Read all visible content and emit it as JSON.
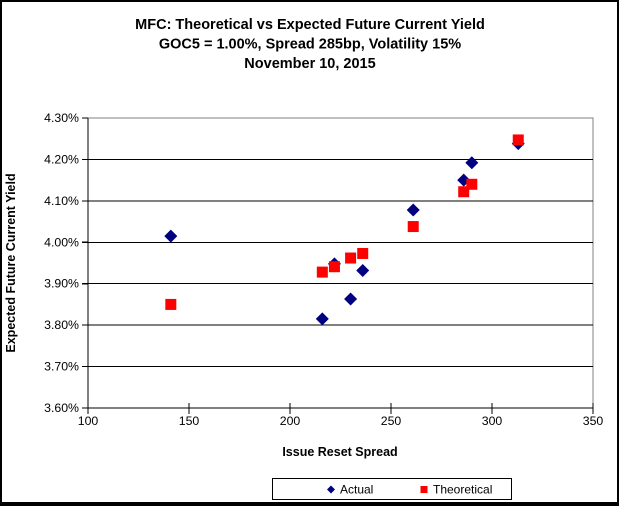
{
  "chart_data": {
    "type": "scatter",
    "title_line1": "MFC: Theoretical vs Expected Future Current Yield",
    "title_line2": "GOC5 = 1.00%, Spread 285bp, Volatility 15%",
    "title_line3": "November 10, 2015",
    "xlabel": "Issue Reset Spread",
    "ylabel": "Expected Future Current Yield",
    "xlim": [
      100,
      350
    ],
    "ylim": [
      3.6,
      4.3
    ],
    "x_ticks": [
      100,
      150,
      200,
      250,
      300,
      350
    ],
    "x_tick_labels": [
      "100",
      "150",
      "200",
      "250",
      "300",
      "350"
    ],
    "y_ticks": [
      3.6,
      3.7,
      3.8,
      3.9,
      4.0,
      4.1,
      4.2,
      4.3
    ],
    "y_tick_labels": [
      "3.60%",
      "3.70%",
      "3.80%",
      "3.90%",
      "4.00%",
      "4.10%",
      "4.20%",
      "4.30%"
    ],
    "y_unit": "percent",
    "grid": "horizontal-major",
    "legend_position": "bottom",
    "colors": {
      "actual": "#000080",
      "theoretical": "#FF0000",
      "gridline": "#000000",
      "plot_border": "#808080",
      "axis": "#000000",
      "background": "#FFFFFF"
    },
    "series": [
      {
        "name": "Actual",
        "marker": "diamond",
        "color": "#000080",
        "points": [
          [
            141,
            4.015
          ],
          [
            216,
            3.815
          ],
          [
            222,
            3.948
          ],
          [
            230,
            3.863
          ],
          [
            236,
            3.932
          ],
          [
            261,
            4.078
          ],
          [
            286,
            4.15
          ],
          [
            290,
            4.192
          ],
          [
            313,
            4.238
          ]
        ]
      },
      {
        "name": "Theoretical",
        "marker": "square",
        "color": "#FF0000",
        "points": [
          [
            141,
            3.85
          ],
          [
            216,
            3.928
          ],
          [
            222,
            3.941
          ],
          [
            230,
            3.962
          ],
          [
            236,
            3.973
          ],
          [
            261,
            4.038
          ],
          [
            286,
            4.122
          ],
          [
            290,
            4.14
          ],
          [
            313,
            4.247
          ]
        ]
      }
    ]
  }
}
